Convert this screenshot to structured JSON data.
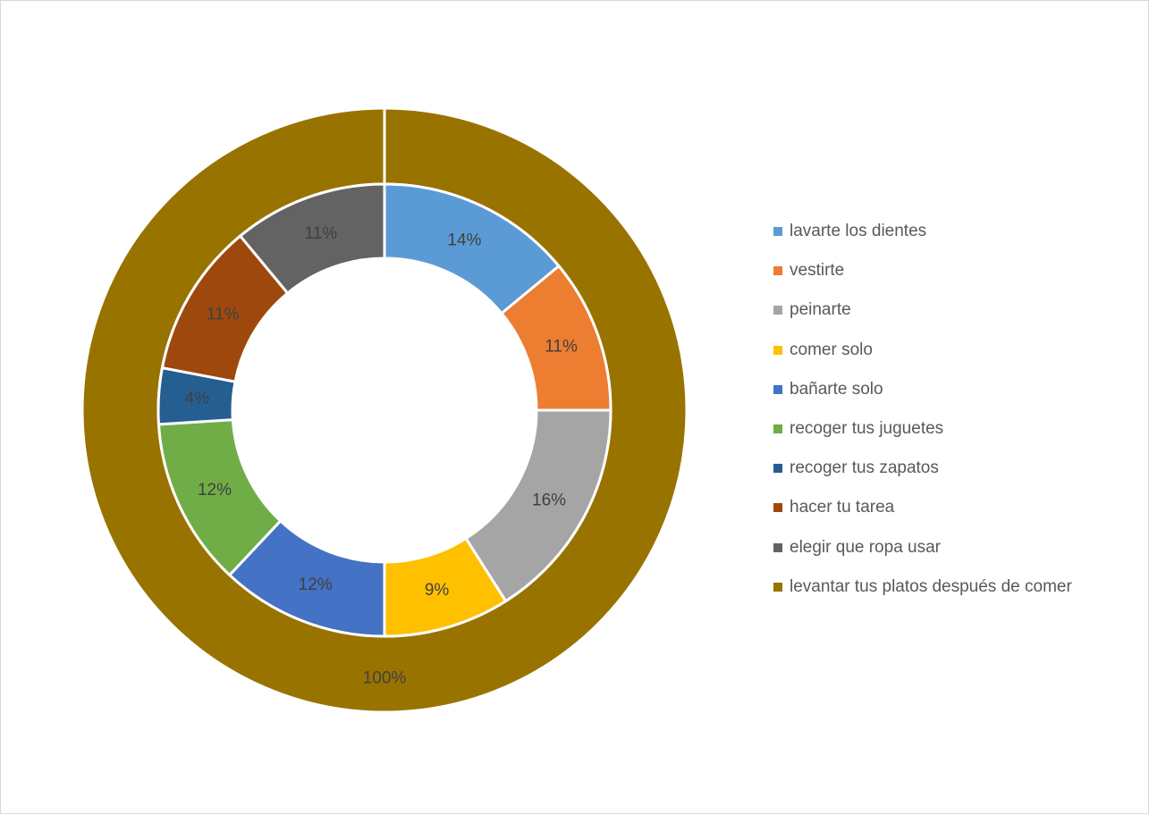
{
  "chart_data": {
    "type": "doughnut",
    "title": "",
    "legend_position": "right",
    "rings": [
      {
        "level": "inner",
        "categories": [
          "lavarte los dientes",
          "vestirte",
          "peinarte",
          "comer solo",
          "bañarte solo",
          "recoger tus juguetes",
          "recoger tus zapatos",
          "hacer tu tarea",
          "elegir que ropa usar"
        ],
        "values": [
          14,
          11,
          16,
          9,
          12,
          12,
          4,
          11,
          11
        ],
        "labels": [
          "14%",
          "11%",
          "16%",
          "9%",
          "12%",
          "12%",
          "4%",
          "11%",
          "11%"
        ],
        "colors": [
          "#5b9bd5",
          "#ed7d31",
          "#a5a5a5",
          "#ffc000",
          "#4472c4",
          "#70ad47",
          "#255e91",
          "#9e480e",
          "#636363"
        ]
      },
      {
        "level": "outer",
        "categories": [
          "levantar tus platos después de comer"
        ],
        "values": [
          100
        ],
        "labels": [
          "100%"
        ],
        "colors": [
          "#997300"
        ]
      }
    ],
    "legend": [
      {
        "label": "lavarte los dientes",
        "color": "#5b9bd5"
      },
      {
        "label": "vestirte",
        "color": "#ed7d31"
      },
      {
        "label": "peinarte",
        "color": "#a5a5a5"
      },
      {
        "label": "comer solo",
        "color": "#ffc000"
      },
      {
        "label": "bañarte solo",
        "color": "#4472c4"
      },
      {
        "label": "recoger tus juguetes",
        "color": "#70ad47"
      },
      {
        "label": "recoger tus zapatos",
        "color": "#255e91"
      },
      {
        "label": "hacer tu tarea",
        "color": "#9e480e"
      },
      {
        "label": "elegir que ropa usar",
        "color": "#636363"
      },
      {
        "label": "levantar tus platos después de comer",
        "color": "#997300"
      }
    ]
  }
}
